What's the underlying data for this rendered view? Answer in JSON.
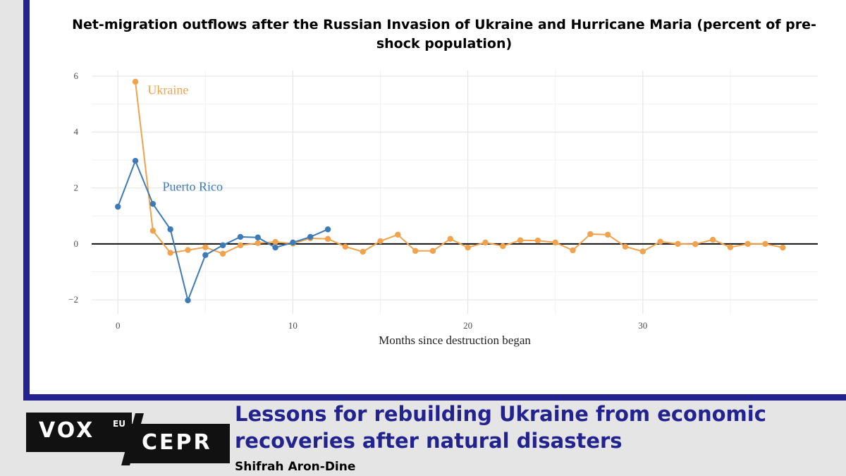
{
  "chart_data": {
    "type": "line",
    "title": "Net-migration outflows after the Russian Invasion of Ukraine and Hurricane Maria (percent of pre-shock population)",
    "xlabel": "Months since destruction began",
    "ylabel": "",
    "xlim": [
      -1.5,
      40
    ],
    "ylim": [
      -2.5,
      6.2
    ],
    "x_ticks": [
      0,
      10,
      20,
      30
    ],
    "y_ticks": [
      -2,
      0,
      2,
      4,
      6
    ],
    "x_tick_labels": [
      "0",
      "10",
      "20",
      "30"
    ],
    "y_tick_labels": [
      "−2",
      "0",
      "2",
      "4",
      "6"
    ],
    "grid": true,
    "zero_line": true,
    "series": [
      {
        "name": "Ukraine",
        "color": "#f0a24c",
        "x": [
          1,
          2,
          3,
          4,
          5,
          6,
          7,
          8,
          9,
          10,
          11,
          12,
          13,
          14,
          15,
          16,
          17,
          18,
          19,
          20,
          21,
          22,
          23,
          24,
          25,
          26,
          27,
          28,
          29,
          30,
          31,
          32,
          33,
          34,
          35,
          36,
          37,
          38
        ],
        "values": [
          5.8,
          0.47,
          -0.32,
          -0.22,
          -0.12,
          -0.35,
          -0.05,
          0.03,
          0.07,
          0.01,
          0.2,
          0.18,
          -0.1,
          -0.28,
          0.1,
          0.33,
          -0.25,
          -0.25,
          0.18,
          -0.13,
          0.05,
          -0.08,
          0.13,
          0.12,
          0.05,
          -0.23,
          0.35,
          0.33,
          -0.1,
          -0.27,
          0.08,
          0.0,
          -0.01,
          0.15,
          -0.12,
          0.0,
          0.0,
          -0.13
        ]
      },
      {
        "name": "Puerto Rico",
        "color": "#3d7ab8",
        "x": [
          0,
          1,
          2,
          3,
          4,
          5,
          6,
          7,
          8,
          9,
          10,
          11,
          12
        ],
        "values": [
          1.33,
          2.97,
          1.43,
          0.52,
          -2.02,
          -0.4,
          -0.05,
          0.25,
          0.23,
          -0.13,
          0.05,
          0.25,
          0.52
        ]
      }
    ]
  },
  "branding": {
    "vox": "VOX",
    "eu": "EU",
    "cepr": "CEPR",
    "dark": "#111111",
    "accent": "#23238f"
  },
  "article": {
    "title": "Lessons for rebuilding Ukraine from economic recoveries after natural disasters",
    "author": "Shifrah Aron-Dine"
  }
}
